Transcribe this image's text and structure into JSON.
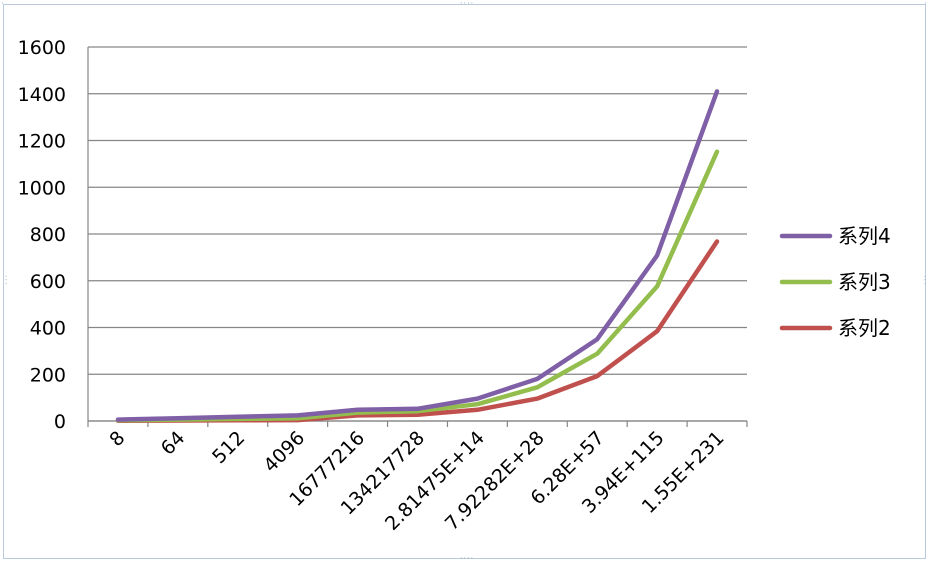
{
  "chart_data": {
    "type": "line",
    "categories": [
      "8",
      "64",
      "512",
      "4096",
      "16777216",
      "134217728",
      "2.81475E+14",
      "7.92282E+28",
      "6.28E+57",
      "3.94E+115",
      "1.55E+231"
    ],
    "ylim": [
      0,
      1600
    ],
    "yticks": [
      "0",
      "200",
      "400",
      "600",
      "800",
      "1000",
      "1200",
      "1400",
      "1600"
    ],
    "grid": true,
    "legend_position": "right",
    "series": [
      {
        "name": "系列4",
        "color": "#7f5fa6",
        "values": [
          6,
          12,
          18,
          24,
          48,
          52,
          96,
          180,
          350,
          708,
          1410
        ]
      },
      {
        "name": "系列3",
        "color": "#93be4e",
        "values": [
          3,
          6,
          9,
          12,
          36,
          42,
          72,
          144,
          288,
          576,
          1152
        ]
      },
      {
        "name": "系列2",
        "color": "#c0504d",
        "values": [
          1,
          2,
          3,
          4,
          24,
          27,
          48,
          96,
          192,
          384,
          768
        ]
      }
    ]
  }
}
